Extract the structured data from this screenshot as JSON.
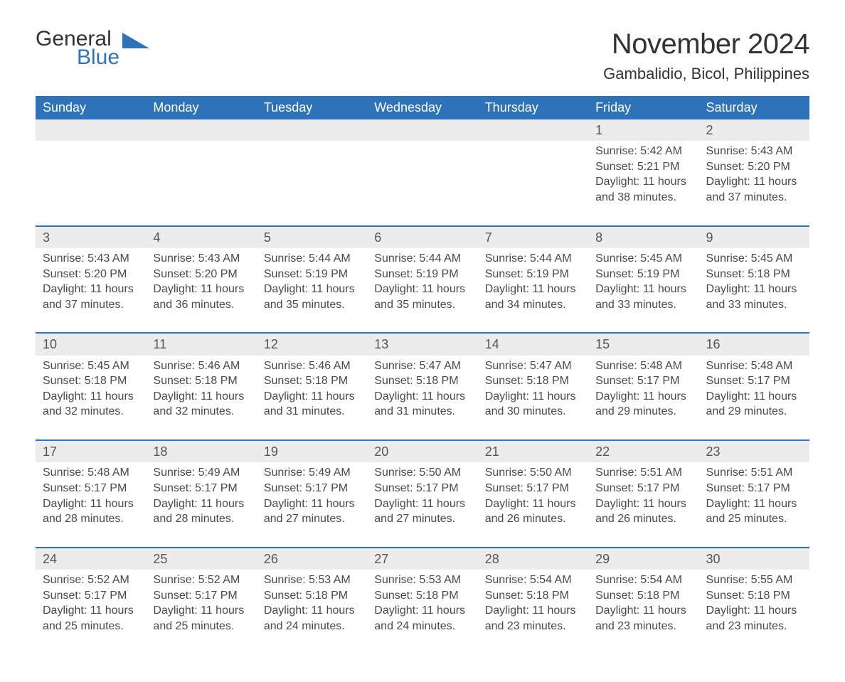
{
  "logo": {
    "general": "General",
    "blue": "Blue"
  },
  "title": "November 2024",
  "location": "Gambalidio, Bicol, Philippines",
  "colors": {
    "brand_blue": "#2e72b8",
    "day_bg": "#ececec",
    "text": "#333333",
    "text_muted": "#4a4a4a",
    "background": "#ffffff"
  },
  "weekday_labels": [
    "Sunday",
    "Monday",
    "Tuesday",
    "Wednesday",
    "Thursday",
    "Friday",
    "Saturday"
  ],
  "labels": {
    "sunrise": "Sunrise:",
    "sunset": "Sunset:",
    "daylight": "Daylight:"
  },
  "weeks": [
    [
      null,
      null,
      null,
      null,
      null,
      {
        "n": 1,
        "sunrise": "5:42 AM",
        "sunset": "5:21 PM",
        "daylight": "11 hours and 38 minutes."
      },
      {
        "n": 2,
        "sunrise": "5:43 AM",
        "sunset": "5:20 PM",
        "daylight": "11 hours and 37 minutes."
      }
    ],
    [
      {
        "n": 3,
        "sunrise": "5:43 AM",
        "sunset": "5:20 PM",
        "daylight": "11 hours and 37 minutes."
      },
      {
        "n": 4,
        "sunrise": "5:43 AM",
        "sunset": "5:20 PM",
        "daylight": "11 hours and 36 minutes."
      },
      {
        "n": 5,
        "sunrise": "5:44 AM",
        "sunset": "5:19 PM",
        "daylight": "11 hours and 35 minutes."
      },
      {
        "n": 6,
        "sunrise": "5:44 AM",
        "sunset": "5:19 PM",
        "daylight": "11 hours and 35 minutes."
      },
      {
        "n": 7,
        "sunrise": "5:44 AM",
        "sunset": "5:19 PM",
        "daylight": "11 hours and 34 minutes."
      },
      {
        "n": 8,
        "sunrise": "5:45 AM",
        "sunset": "5:19 PM",
        "daylight": "11 hours and 33 minutes."
      },
      {
        "n": 9,
        "sunrise": "5:45 AM",
        "sunset": "5:18 PM",
        "daylight": "11 hours and 33 minutes."
      }
    ],
    [
      {
        "n": 10,
        "sunrise": "5:45 AM",
        "sunset": "5:18 PM",
        "daylight": "11 hours and 32 minutes."
      },
      {
        "n": 11,
        "sunrise": "5:46 AM",
        "sunset": "5:18 PM",
        "daylight": "11 hours and 32 minutes."
      },
      {
        "n": 12,
        "sunrise": "5:46 AM",
        "sunset": "5:18 PM",
        "daylight": "11 hours and 31 minutes."
      },
      {
        "n": 13,
        "sunrise": "5:47 AM",
        "sunset": "5:18 PM",
        "daylight": "11 hours and 31 minutes."
      },
      {
        "n": 14,
        "sunrise": "5:47 AM",
        "sunset": "5:18 PM",
        "daylight": "11 hours and 30 minutes."
      },
      {
        "n": 15,
        "sunrise": "5:48 AM",
        "sunset": "5:17 PM",
        "daylight": "11 hours and 29 minutes."
      },
      {
        "n": 16,
        "sunrise": "5:48 AM",
        "sunset": "5:17 PM",
        "daylight": "11 hours and 29 minutes."
      }
    ],
    [
      {
        "n": 17,
        "sunrise": "5:48 AM",
        "sunset": "5:17 PM",
        "daylight": "11 hours and 28 minutes."
      },
      {
        "n": 18,
        "sunrise": "5:49 AM",
        "sunset": "5:17 PM",
        "daylight": "11 hours and 28 minutes."
      },
      {
        "n": 19,
        "sunrise": "5:49 AM",
        "sunset": "5:17 PM",
        "daylight": "11 hours and 27 minutes."
      },
      {
        "n": 20,
        "sunrise": "5:50 AM",
        "sunset": "5:17 PM",
        "daylight": "11 hours and 27 minutes."
      },
      {
        "n": 21,
        "sunrise": "5:50 AM",
        "sunset": "5:17 PM",
        "daylight": "11 hours and 26 minutes."
      },
      {
        "n": 22,
        "sunrise": "5:51 AM",
        "sunset": "5:17 PM",
        "daylight": "11 hours and 26 minutes."
      },
      {
        "n": 23,
        "sunrise": "5:51 AM",
        "sunset": "5:17 PM",
        "daylight": "11 hours and 25 minutes."
      }
    ],
    [
      {
        "n": 24,
        "sunrise": "5:52 AM",
        "sunset": "5:17 PM",
        "daylight": "11 hours and 25 minutes."
      },
      {
        "n": 25,
        "sunrise": "5:52 AM",
        "sunset": "5:17 PM",
        "daylight": "11 hours and 25 minutes."
      },
      {
        "n": 26,
        "sunrise": "5:53 AM",
        "sunset": "5:18 PM",
        "daylight": "11 hours and 24 minutes."
      },
      {
        "n": 27,
        "sunrise": "5:53 AM",
        "sunset": "5:18 PM",
        "daylight": "11 hours and 24 minutes."
      },
      {
        "n": 28,
        "sunrise": "5:54 AM",
        "sunset": "5:18 PM",
        "daylight": "11 hours and 23 minutes."
      },
      {
        "n": 29,
        "sunrise": "5:54 AM",
        "sunset": "5:18 PM",
        "daylight": "11 hours and 23 minutes."
      },
      {
        "n": 30,
        "sunrise": "5:55 AM",
        "sunset": "5:18 PM",
        "daylight": "11 hours and 23 minutes."
      }
    ]
  ]
}
